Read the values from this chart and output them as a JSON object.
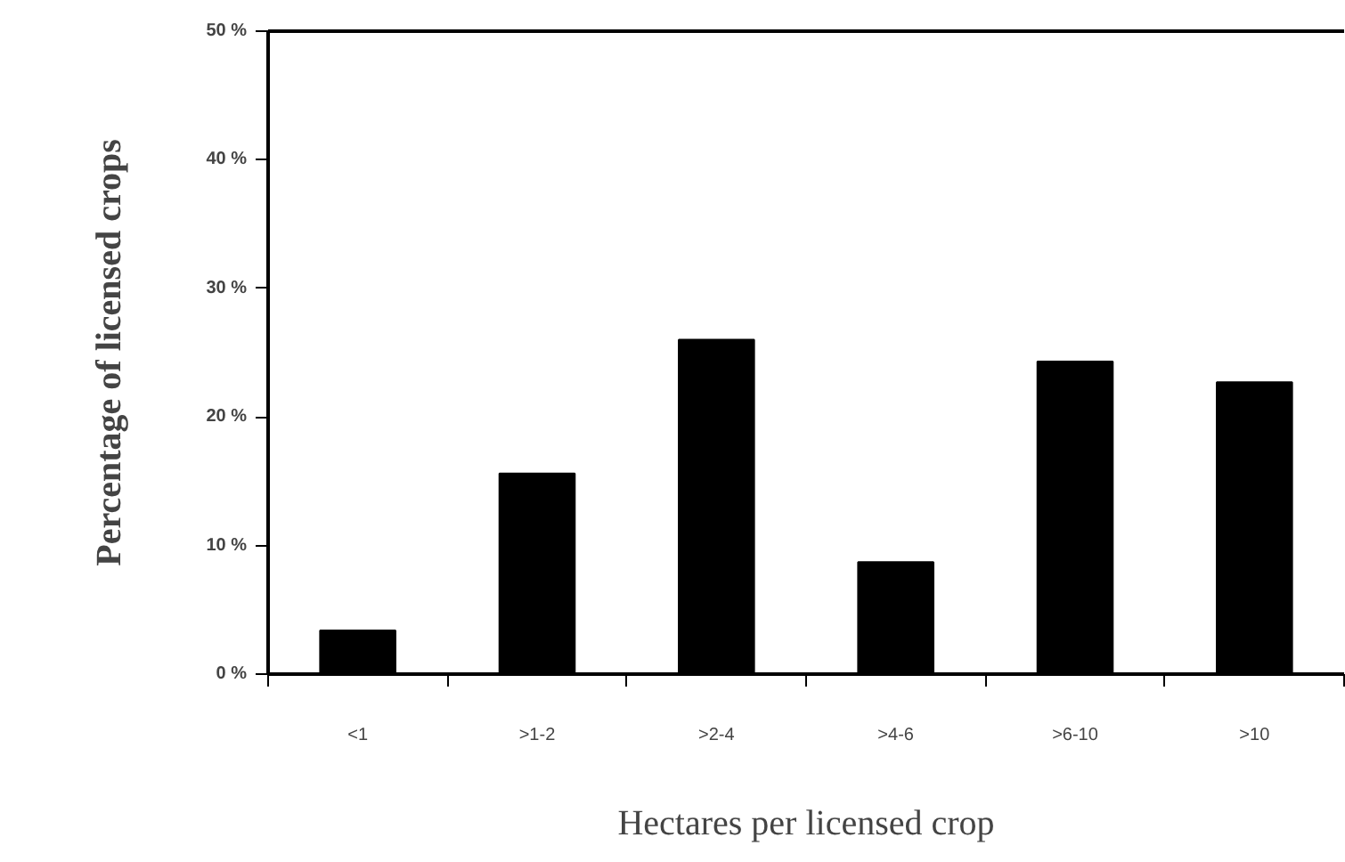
{
  "chart_data": {
    "type": "bar",
    "xlabel": "Hectares per licensed crop",
    "ylabel": "Percentage of licensed crops",
    "categories": [
      "<1",
      ">1-2",
      ">2-4",
      ">4-6",
      ">6-10",
      ">10"
    ],
    "values": [
      3.4,
      15.6,
      26.0,
      8.7,
      24.3,
      22.7
    ],
    "color": "#000000",
    "ylim": [
      0,
      50
    ],
    "yticks": [
      {
        "value": 0,
        "label": "0 %"
      },
      {
        "value": 10,
        "label": "10 %"
      },
      {
        "value": 20,
        "label": "20 %"
      },
      {
        "value": 30,
        "label": "30 %"
      },
      {
        "value": 40,
        "label": "40 %"
      },
      {
        "value": 50,
        "label": "50 %"
      }
    ],
    "grid": false
  }
}
